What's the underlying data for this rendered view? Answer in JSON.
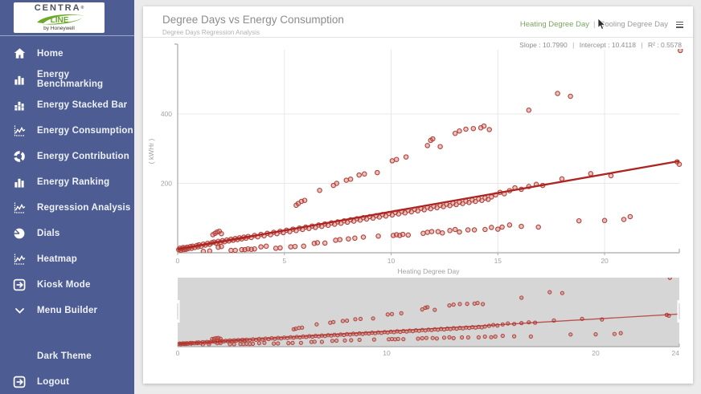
{
  "sidebar": {
    "logo": {
      "brand_top": "CENTRA",
      "reg_mark": "®",
      "brand_bottom": "LINE",
      "byline": "by Honeywell"
    },
    "items": [
      {
        "id": "home",
        "icon": "home-icon",
        "label": "Home"
      },
      {
        "id": "energy-benchmarking",
        "icon": "bar-chart-icon",
        "label": "Energy Benchmarking"
      },
      {
        "id": "energy-stacked-bar",
        "icon": "stacked-bar-icon",
        "label": "Energy Stacked Bar"
      },
      {
        "id": "energy-consumption",
        "icon": "line-chart-icon",
        "label": "Energy Consumption"
      },
      {
        "id": "energy-contribution",
        "icon": "donut-icon",
        "label": "Energy Contribution"
      },
      {
        "id": "energy-ranking",
        "icon": "bar-chart-icon",
        "label": "Energy Ranking"
      },
      {
        "id": "regression-analysis",
        "icon": "line-chart-icon",
        "label": "Regression Analysis"
      },
      {
        "id": "dials",
        "icon": "pie-icon",
        "label": "Dials"
      },
      {
        "id": "heatmap",
        "icon": "line-chart-icon",
        "label": "Heatmap"
      },
      {
        "id": "kiosk-mode",
        "icon": "exit-icon",
        "label": "Kiosk Mode"
      },
      {
        "id": "menu-builder",
        "icon": "chevron-down-icon",
        "label": "Menu Builder"
      }
    ],
    "bottom_items": [
      {
        "id": "dark-theme",
        "icon": "none",
        "label": "Dark Theme"
      },
      {
        "id": "logout",
        "icon": "exit-icon",
        "label": "Logout"
      }
    ]
  },
  "header": {
    "title": "Degree Days vs Energy Consumption",
    "subtitle": "Degree Days Regression Analysis",
    "toggle": {
      "heating": "Heating Degree Day",
      "separator": "|",
      "cooling": "Cooling Degree Day"
    },
    "menu_icon": "hamburger-icon"
  },
  "stats": {
    "slope_text": "Slope : 10.7990",
    "intercept_text": "Intercept : 10.4118",
    "r2_text": "R² : 0.5578",
    "separator": "|"
  },
  "chart_data": {
    "type": "scatter",
    "title": "Degree Days vs Energy Consumption",
    "xlabel": "Heating Degree Day",
    "ylabel": "( kWHr )",
    "xlim": [
      0,
      23.5
    ],
    "ylim": [
      0,
      585
    ],
    "x_ticks": [
      0,
      5,
      10,
      15,
      20
    ],
    "y_ticks": [
      200,
      400
    ],
    "grid": true,
    "legend": "none",
    "regression": {
      "slope": 10.799,
      "intercept": 10.4118,
      "r2": 0.5578
    },
    "colors": {
      "point": "#b2423a",
      "point_fill": "#c05048",
      "line": "#ad2421",
      "grid": "#e8e8e8",
      "axis": "#a8a8a8",
      "tick_text": "#a2a2a2",
      "nav_bg": "#d6d6d6"
    },
    "points": [
      [
        0.05,
        9
      ],
      [
        0.1,
        13
      ],
      [
        0.15,
        7
      ],
      [
        0.2,
        11
      ],
      [
        0.25,
        15
      ],
      [
        0.3,
        9
      ],
      [
        0.35,
        14
      ],
      [
        0.4,
        10
      ],
      [
        0.45,
        16
      ],
      [
        0.5,
        12
      ],
      [
        0.6,
        18
      ],
      [
        0.65,
        13
      ],
      [
        0.7,
        19
      ],
      [
        0.8,
        15
      ],
      [
        0.9,
        21
      ],
      [
        0.95,
        17
      ],
      [
        1.0,
        23
      ],
      [
        1.1,
        19
      ],
      [
        1.2,
        25
      ],
      [
        1.3,
        22
      ],
      [
        1.4,
        27
      ],
      [
        1.5,
        24
      ],
      [
        1.6,
        29
      ],
      [
        1.7,
        31
      ],
      [
        1.8,
        28
      ],
      [
        1.9,
        33
      ],
      [
        2.0,
        30
      ],
      [
        2.1,
        35
      ],
      [
        2.2,
        32
      ],
      [
        2.3,
        37
      ],
      [
        2.4,
        34
      ],
      [
        2.5,
        39
      ],
      [
        2.6,
        36
      ],
      [
        2.7,
        41
      ],
      [
        2.8,
        38
      ],
      [
        2.9,
        43
      ],
      [
        3.0,
        40
      ],
      [
        3.1,
        45
      ],
      [
        3.2,
        42
      ],
      [
        3.3,
        47
      ],
      [
        3.45,
        44
      ],
      [
        3.6,
        50
      ],
      [
        3.75,
        46
      ],
      [
        3.9,
        53
      ],
      [
        4.05,
        49
      ],
      [
        4.2,
        56
      ],
      [
        4.35,
        52
      ],
      [
        4.5,
        59
      ],
      [
        4.65,
        55
      ],
      [
        4.8,
        62
      ],
      [
        4.95,
        58
      ],
      [
        5.1,
        65
      ],
      [
        5.25,
        61
      ],
      [
        5.4,
        68
      ],
      [
        5.55,
        64
      ],
      [
        5.7,
        71
      ],
      [
        5.85,
        67
      ],
      [
        6.0,
        74
      ],
      [
        6.15,
        70
      ],
      [
        6.3,
        77
      ],
      [
        6.45,
        73
      ],
      [
        6.6,
        80
      ],
      [
        6.75,
        76
      ],
      [
        6.9,
        83
      ],
      [
        7.05,
        79
      ],
      [
        7.2,
        86
      ],
      [
        7.35,
        82
      ],
      [
        7.5,
        89
      ],
      [
        7.65,
        85
      ],
      [
        7.8,
        92
      ],
      [
        7.95,
        88
      ],
      [
        8.1,
        95
      ],
      [
        8.25,
        91
      ],
      [
        8.4,
        98
      ],
      [
        8.55,
        94
      ],
      [
        8.7,
        101
      ],
      [
        8.85,
        97
      ],
      [
        9.0,
        104
      ],
      [
        9.15,
        100
      ],
      [
        9.3,
        107
      ],
      [
        9.45,
        103
      ],
      [
        9.6,
        110
      ],
      [
        9.75,
        106
      ],
      [
        9.9,
        113
      ],
      [
        10.05,
        109
      ],
      [
        10.2,
        116
      ],
      [
        10.35,
        112
      ],
      [
        10.5,
        119
      ],
      [
        10.65,
        115
      ],
      [
        10.8,
        122
      ],
      [
        10.95,
        118
      ],
      [
        11.1,
        125
      ],
      [
        11.25,
        121
      ],
      [
        11.4,
        128
      ],
      [
        11.55,
        124
      ],
      [
        11.7,
        131
      ],
      [
        11.85,
        127
      ],
      [
        12.0,
        134
      ],
      [
        12.15,
        130
      ],
      [
        12.3,
        137
      ],
      [
        12.45,
        133
      ],
      [
        12.6,
        140
      ],
      [
        12.75,
        136
      ],
      [
        12.9,
        143
      ],
      [
        13.05,
        139
      ],
      [
        13.2,
        146
      ],
      [
        13.35,
        142
      ],
      [
        13.5,
        149
      ],
      [
        13.65,
        145
      ],
      [
        13.8,
        152
      ],
      [
        13.95,
        148
      ],
      [
        14.1,
        155
      ],
      [
        14.25,
        151
      ],
      [
        14.4,
        158
      ],
      [
        14.55,
        154
      ],
      [
        14.7,
        161
      ],
      [
        14.9,
        167
      ],
      [
        15.1,
        174
      ],
      [
        15.3,
        170
      ],
      [
        15.55,
        179
      ],
      [
        15.8,
        187
      ],
      [
        16.1,
        183
      ],
      [
        16.45,
        191
      ],
      [
        16.8,
        197
      ],
      [
        17.1,
        194
      ],
      [
        18.0,
        213
      ],
      [
        19.35,
        228
      ],
      [
        20.3,
        222
      ],
      [
        23.4,
        262
      ],
      [
        23.5,
        255
      ],
      [
        1.65,
        52
      ],
      [
        1.75,
        56
      ],
      [
        1.85,
        60
      ],
      [
        1.95,
        62
      ],
      [
        2.05,
        55
      ],
      [
        5.55,
        137
      ],
      [
        5.65,
        142
      ],
      [
        5.8,
        148
      ],
      [
        5.95,
        151
      ],
      [
        6.65,
        180
      ],
      [
        7.3,
        194
      ],
      [
        7.45,
        200
      ],
      [
        7.9,
        209
      ],
      [
        8.1,
        212
      ],
      [
        8.5,
        224
      ],
      [
        8.75,
        227
      ],
      [
        9.35,
        231
      ],
      [
        10.05,
        265
      ],
      [
        10.25,
        269
      ],
      [
        10.7,
        276
      ],
      [
        11.7,
        309
      ],
      [
        11.85,
        324
      ],
      [
        11.95,
        328
      ],
      [
        12.3,
        306
      ],
      [
        13.0,
        344
      ],
      [
        13.2,
        351
      ],
      [
        13.5,
        356
      ],
      [
        13.85,
        358
      ],
      [
        14.2,
        360
      ],
      [
        14.35,
        365
      ],
      [
        14.6,
        355
      ],
      [
        16.45,
        411
      ],
      [
        17.8,
        459
      ],
      [
        18.4,
        451
      ],
      [
        23.55,
        583
      ],
      [
        1.2,
        4
      ],
      [
        1.5,
        5
      ],
      [
        1.9,
        16
      ],
      [
        2.05,
        18
      ],
      [
        2.5,
        7
      ],
      [
        2.7,
        7
      ],
      [
        3.0,
        9
      ],
      [
        3.15,
        9
      ],
      [
        3.3,
        11
      ],
      [
        3.45,
        10
      ],
      [
        3.6,
        11
      ],
      [
        3.9,
        17
      ],
      [
        4.15,
        19
      ],
      [
        4.6,
        13
      ],
      [
        4.8,
        14
      ],
      [
        5.3,
        17
      ],
      [
        5.5,
        18
      ],
      [
        5.9,
        19
      ],
      [
        6.4,
        27
      ],
      [
        6.55,
        29
      ],
      [
        6.9,
        28
      ],
      [
        7.4,
        36
      ],
      [
        7.6,
        38
      ],
      [
        8.0,
        40
      ],
      [
        8.3,
        42
      ],
      [
        8.7,
        45
      ],
      [
        9.4,
        48
      ],
      [
        10.1,
        50
      ],
      [
        10.25,
        52
      ],
      [
        10.4,
        50
      ],
      [
        10.55,
        53
      ],
      [
        10.8,
        51
      ],
      [
        11.5,
        56
      ],
      [
        11.7,
        59
      ],
      [
        11.9,
        61
      ],
      [
        12.2,
        61
      ],
      [
        12.4,
        57
      ],
      [
        12.75,
        64
      ],
      [
        13.0,
        67
      ],
      [
        13.2,
        60
      ],
      [
        13.6,
        66
      ],
      [
        13.9,
        66
      ],
      [
        14.4,
        67
      ],
      [
        14.7,
        73
      ],
      [
        15.0,
        68
      ],
      [
        15.2,
        74
      ],
      [
        15.55,
        80
      ],
      [
        16.1,
        76
      ],
      [
        16.9,
        74
      ],
      [
        18.8,
        92
      ],
      [
        20.0,
        93
      ],
      [
        20.9,
        96
      ],
      [
        21.2,
        104
      ]
    ],
    "navigator": {
      "xlim": [
        0,
        24
      ],
      "x_ticks": [
        0,
        10,
        20,
        24
      ]
    }
  }
}
